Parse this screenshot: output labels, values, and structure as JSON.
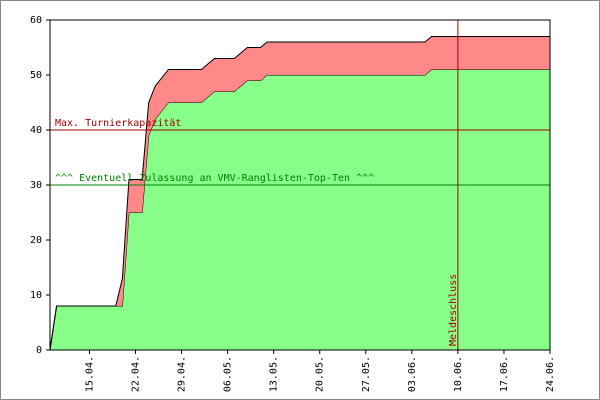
{
  "chart_data": {
    "type": "stacked_area",
    "x": [
      "09.04.",
      "10.04.",
      "19.04.",
      "20.04.",
      "21.04.",
      "23.04.",
      "24.04.",
      "25.04.",
      "27.04.",
      "02.05.",
      "04.05.",
      "07.05.",
      "09.05.",
      "11.05.",
      "12.05.",
      "05.06.",
      "06.06.",
      "24.06."
    ],
    "series": [
      {
        "color": "#88ff88",
        "values": [
          0,
          8,
          8,
          8,
          25,
          25,
          39,
          42,
          45,
          45,
          47,
          47,
          49,
          49,
          50,
          50,
          51,
          51
        ]
      },
      {
        "color": "#ff8888",
        "values": [
          0,
          0,
          0,
          5,
          6,
          6,
          6,
          6,
          6,
          6,
          6,
          6,
          6,
          6,
          6,
          6,
          6,
          6
        ]
      }
    ],
    "xlim": [
      "09.04.",
      "24.06."
    ],
    "xticks": [
      "15.04.",
      "22.04.",
      "29.04.",
      "06.05.",
      "13.05.",
      "20.05.",
      "27.05.",
      "03.06.",
      "10.06.",
      "17.06.",
      "24.06."
    ],
    "ylim": [
      0,
      60
    ],
    "yticks": [
      0,
      10,
      20,
      30,
      40,
      50,
      60
    ],
    "hlines": [
      {
        "value": 40,
        "label": "Max. Turnierkapazität",
        "color": "#a00000"
      },
      {
        "value": 30,
        "label": "^^^ Eventuell Zulassung an VMV-Ranglisten-Top-Ten ^^^",
        "color": "#008000"
      }
    ],
    "vlines": [
      {
        "value": "10.06.",
        "label": "Meldeschluss",
        "color": "#a00000"
      }
    ]
  }
}
